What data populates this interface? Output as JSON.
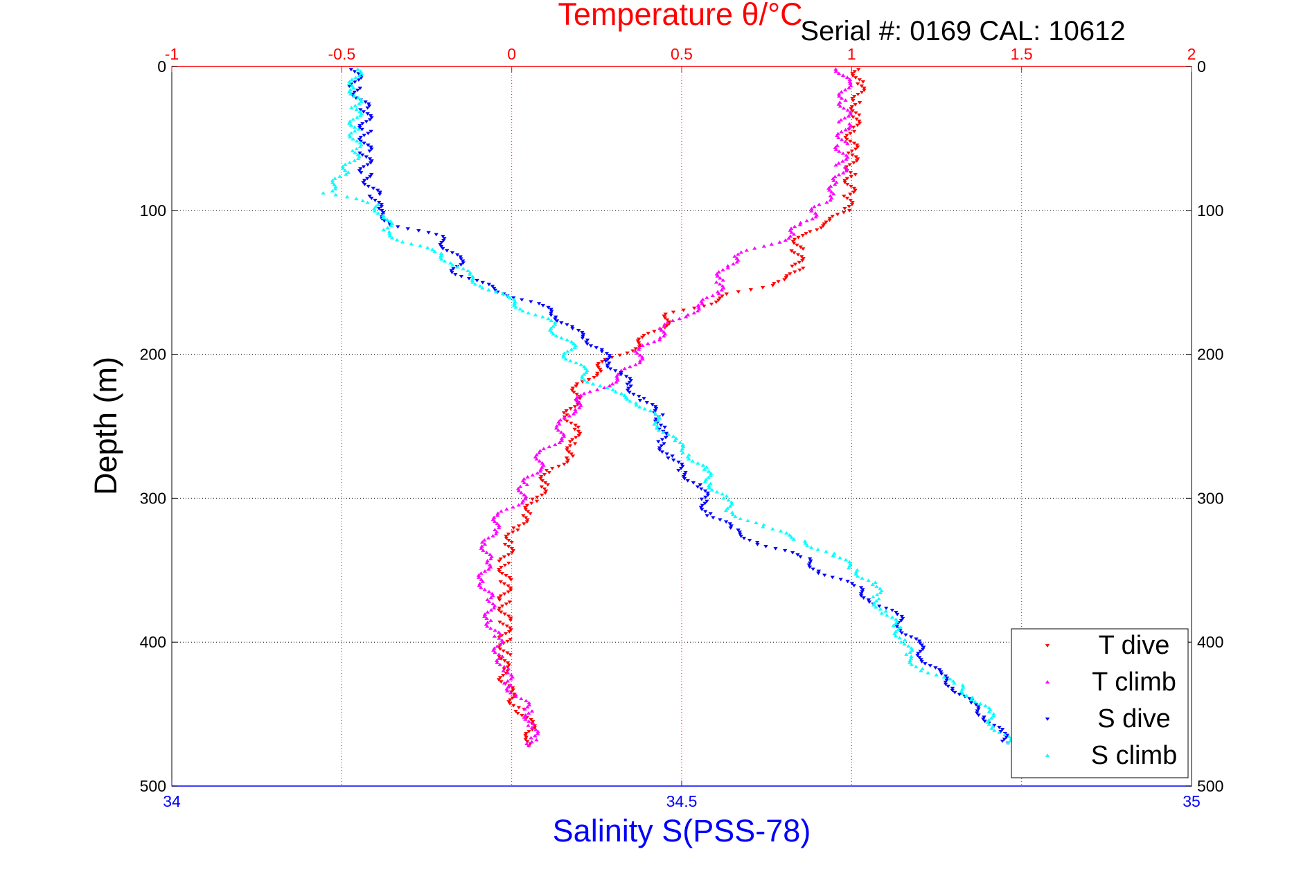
{
  "chart_data": {
    "type": "scatter",
    "title": "Temperature θ/°C",
    "annotation": "Serial #: 0169 CAL: 10612",
    "xlabel": "Salinity S(PSS-78)",
    "ylabel": "Depth (m)",
    "top_axis": {
      "label": "Temperature θ/°C",
      "range": [
        -1,
        2
      ],
      "ticks": [
        -1,
        -0.5,
        0,
        0.5,
        1,
        1.5,
        2
      ],
      "tick_labels": [
        "-1",
        "-0.5",
        "0",
        "0.5",
        "1",
        "1.5",
        "2"
      ],
      "color": "#ff0000"
    },
    "bottom_axis": {
      "label": "Salinity S(PSS-78)",
      "range": [
        34,
        35
      ],
      "ticks": [
        34,
        34.5,
        35
      ],
      "tick_labels": [
        "34",
        "34.5",
        "35"
      ],
      "color": "#0000ff"
    },
    "y_axis": {
      "label": "Depth (m)",
      "range": [
        0,
        500
      ],
      "reversed": true,
      "ticks": [
        0,
        100,
        200,
        300,
        400,
        500
      ],
      "tick_labels": [
        "0",
        "100",
        "200",
        "300",
        "400",
        "500"
      ]
    },
    "grid": true,
    "legend_position": "bottom-right",
    "legend": [
      "T dive",
      "T climb",
      "S dive",
      "S climb"
    ],
    "series": [
      {
        "name": "T dive",
        "axis": "temperature",
        "color": "#ff0000",
        "marker": "triangle-down",
        "points": [
          [
            1.02,
            2
          ],
          [
            1.02,
            12
          ],
          [
            1.02,
            25
          ],
          [
            1.01,
            35
          ],
          [
            1.0,
            45
          ],
          [
            1.0,
            60
          ],
          [
            1.0,
            75
          ],
          [
            0.99,
            90
          ],
          [
            0.98,
            100
          ],
          [
            0.94,
            108
          ],
          [
            0.85,
            116
          ],
          [
            0.84,
            128
          ],
          [
            0.84,
            140
          ],
          [
            0.82,
            148
          ],
          [
            0.75,
            152
          ],
          [
            0.65,
            158
          ],
          [
            0.57,
            165
          ],
          [
            0.47,
            172
          ],
          [
            0.44,
            180
          ],
          [
            0.4,
            188
          ],
          [
            0.35,
            196
          ],
          [
            0.28,
            205
          ],
          [
            0.24,
            213
          ],
          [
            0.2,
            222
          ],
          [
            0.18,
            232
          ],
          [
            0.17,
            242
          ],
          [
            0.18,
            252
          ],
          [
            0.19,
            262
          ],
          [
            0.16,
            272
          ],
          [
            0.11,
            282
          ],
          [
            0.09,
            292
          ],
          [
            0.07,
            302
          ],
          [
            0.04,
            312
          ],
          [
            0.01,
            322
          ],
          [
            -0.01,
            332
          ],
          [
            -0.02,
            345
          ],
          [
            -0.02,
            358
          ],
          [
            -0.02,
            372
          ],
          [
            -0.02,
            386
          ],
          [
            -0.02,
            398
          ],
          [
            -0.02,
            410
          ],
          [
            -0.03,
            420
          ],
          [
            -0.02,
            426
          ],
          [
            -0.01,
            436
          ],
          [
            0.03,
            448
          ],
          [
            0.05,
            458
          ],
          [
            0.06,
            466
          ],
          [
            0.05,
            472
          ]
        ]
      },
      {
        "name": "T climb",
        "axis": "temperature",
        "color": "#ff00ff",
        "marker": "triangle-up",
        "points": [
          [
            0.97,
            2
          ],
          [
            0.98,
            12
          ],
          [
            0.98,
            25
          ],
          [
            0.98,
            40
          ],
          [
            0.97,
            55
          ],
          [
            0.97,
            70
          ],
          [
            0.96,
            82
          ],
          [
            0.93,
            90
          ],
          [
            0.91,
            96
          ],
          [
            0.89,
            102
          ],
          [
            0.85,
            110
          ],
          [
            0.82,
            118
          ],
          [
            0.74,
            125
          ],
          [
            0.66,
            132
          ],
          [
            0.63,
            140
          ],
          [
            0.61,
            150
          ],
          [
            0.6,
            158
          ],
          [
            0.56,
            166
          ],
          [
            0.5,
            174
          ],
          [
            0.45,
            182
          ],
          [
            0.42,
            190
          ],
          [
            0.38,
            198
          ],
          [
            0.36,
            206
          ],
          [
            0.33,
            214
          ],
          [
            0.27,
            222
          ],
          [
            0.21,
            230
          ],
          [
            0.17,
            240
          ],
          [
            0.15,
            250
          ],
          [
            0.13,
            260
          ],
          [
            0.09,
            270
          ],
          [
            0.07,
            280
          ],
          [
            0.04,
            292
          ],
          [
            0.02,
            302
          ],
          [
            -0.03,
            312
          ],
          [
            -0.06,
            322
          ],
          [
            -0.07,
            332
          ],
          [
            -0.08,
            345
          ],
          [
            -0.08,
            358
          ],
          [
            -0.07,
            372
          ],
          [
            -0.06,
            385
          ],
          [
            -0.05,
            396
          ],
          [
            -0.03,
            410
          ],
          [
            -0.02,
            420
          ],
          [
            -0.01,
            430
          ],
          [
            0.02,
            438
          ],
          [
            0.05,
            448
          ],
          [
            0.06,
            458
          ],
          [
            0.06,
            468
          ],
          [
            0.05,
            472
          ]
        ]
      },
      {
        "name": "S dive",
        "axis": "salinity",
        "color": "#0000ff",
        "marker": "triangle-down",
        "points": [
          [
            34.18,
            2
          ],
          [
            34.18,
            15
          ],
          [
            34.19,
            30
          ],
          [
            34.19,
            45
          ],
          [
            34.19,
            60
          ],
          [
            34.19,
            75
          ],
          [
            34.2,
            90
          ],
          [
            34.2,
            100
          ],
          [
            34.22,
            110
          ],
          [
            34.26,
            118
          ],
          [
            34.27,
            125
          ],
          [
            34.28,
            135
          ],
          [
            34.28,
            143
          ],
          [
            34.3,
            150
          ],
          [
            34.33,
            158
          ],
          [
            34.36,
            166
          ],
          [
            34.38,
            174
          ],
          [
            34.39,
            182
          ],
          [
            34.41,
            190
          ],
          [
            34.42,
            198
          ],
          [
            34.43,
            206
          ],
          [
            34.44,
            214
          ],
          [
            34.45,
            222
          ],
          [
            34.46,
            232
          ],
          [
            34.48,
            242
          ],
          [
            34.48,
            252
          ],
          [
            34.48,
            262
          ],
          [
            34.49,
            272
          ],
          [
            34.5,
            282
          ],
          [
            34.52,
            292
          ],
          [
            34.52,
            302
          ],
          [
            34.53,
            312
          ],
          [
            34.55,
            322
          ],
          [
            34.58,
            332
          ],
          [
            34.62,
            342
          ],
          [
            34.64,
            352
          ],
          [
            34.67,
            362
          ],
          [
            34.69,
            372
          ],
          [
            34.71,
            382
          ],
          [
            34.72,
            392
          ],
          [
            34.73,
            402
          ],
          [
            34.74,
            412
          ],
          [
            34.75,
            422
          ],
          [
            34.77,
            432
          ],
          [
            34.78,
            442
          ],
          [
            34.8,
            452
          ],
          [
            34.81,
            462
          ],
          [
            34.82,
            470
          ]
        ]
      },
      {
        "name": "S climb",
        "axis": "salinity",
        "color": "#00ffff",
        "marker": "triangle-up",
        "points": [
          [
            34.18,
            2
          ],
          [
            34.18,
            15
          ],
          [
            34.18,
            30
          ],
          [
            34.18,
            45
          ],
          [
            34.18,
            60
          ],
          [
            34.17,
            75
          ],
          [
            34.15,
            88
          ],
          [
            34.2,
            96
          ],
          [
            34.21,
            105
          ],
          [
            34.21,
            115
          ],
          [
            34.23,
            122
          ],
          [
            34.26,
            130
          ],
          [
            34.28,
            138
          ],
          [
            34.29,
            146
          ],
          [
            34.31,
            154
          ],
          [
            34.33,
            162
          ],
          [
            34.35,
            170
          ],
          [
            34.37,
            178
          ],
          [
            34.38,
            186
          ],
          [
            34.39,
            194
          ],
          [
            34.39,
            202
          ],
          [
            34.4,
            210
          ],
          [
            34.41,
            218
          ],
          [
            34.43,
            226
          ],
          [
            34.46,
            234
          ],
          [
            34.47,
            242
          ],
          [
            34.48,
            250
          ],
          [
            34.49,
            260
          ],
          [
            34.51,
            270
          ],
          [
            34.52,
            280
          ],
          [
            34.53,
            290
          ],
          [
            34.54,
            300
          ],
          [
            34.55,
            310
          ],
          [
            34.58,
            320
          ],
          [
            34.62,
            330
          ],
          [
            34.65,
            340
          ],
          [
            34.67,
            350
          ],
          [
            34.69,
            360
          ],
          [
            34.69,
            370
          ],
          [
            34.7,
            380
          ],
          [
            34.71,
            390
          ],
          [
            34.72,
            400
          ],
          [
            34.72,
            410
          ],
          [
            34.74,
            420
          ],
          [
            34.77,
            430
          ],
          [
            34.79,
            440
          ],
          [
            34.8,
            450
          ],
          [
            34.81,
            460
          ],
          [
            34.82,
            470
          ]
        ]
      }
    ]
  }
}
